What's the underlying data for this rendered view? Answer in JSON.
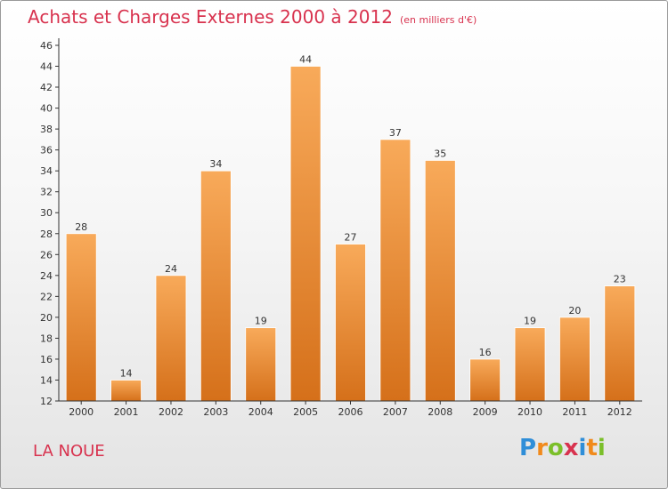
{
  "title": "Achats et Charges Externes 2000 à 2012",
  "unit": "(en milliers d'€)",
  "place": "LA NOUE",
  "logo": {
    "text": "Proxiti",
    "letters": [
      {
        "ch": "P",
        "color": "#2f8ed8"
      },
      {
        "ch": "r",
        "color": "#f18a1c"
      },
      {
        "ch": "o",
        "color": "#7bbf2a"
      },
      {
        "ch": "x",
        "color": "#d8324e"
      },
      {
        "ch": "i",
        "color": "#2f8ed8"
      },
      {
        "ch": "t",
        "color": "#f18a1c"
      },
      {
        "ch": "i",
        "color": "#7bbf2a"
      }
    ]
  },
  "colors": {
    "accent": "#d8324e",
    "bar_light": "#f8aa5a",
    "bar_dark": "#d5701a",
    "axis": "#333333"
  },
  "chart_data": {
    "type": "bar",
    "title": "Achats et Charges Externes 2000 à 2012",
    "subtitle": "(en milliers d'€)",
    "categories": [
      "2000",
      "2001",
      "2002",
      "2003",
      "2004",
      "2005",
      "2006",
      "2007",
      "2008",
      "2009",
      "2010",
      "2011",
      "2012"
    ],
    "values": [
      28,
      14,
      24,
      34,
      19,
      44,
      27,
      37,
      35,
      16,
      19,
      20,
      23
    ],
    "ylim": [
      12,
      46
    ],
    "yticks": [
      12,
      14,
      16,
      18,
      20,
      22,
      24,
      26,
      28,
      30,
      32,
      34,
      36,
      38,
      40,
      42,
      44,
      46
    ],
    "grid": false,
    "data_labels": true
  }
}
